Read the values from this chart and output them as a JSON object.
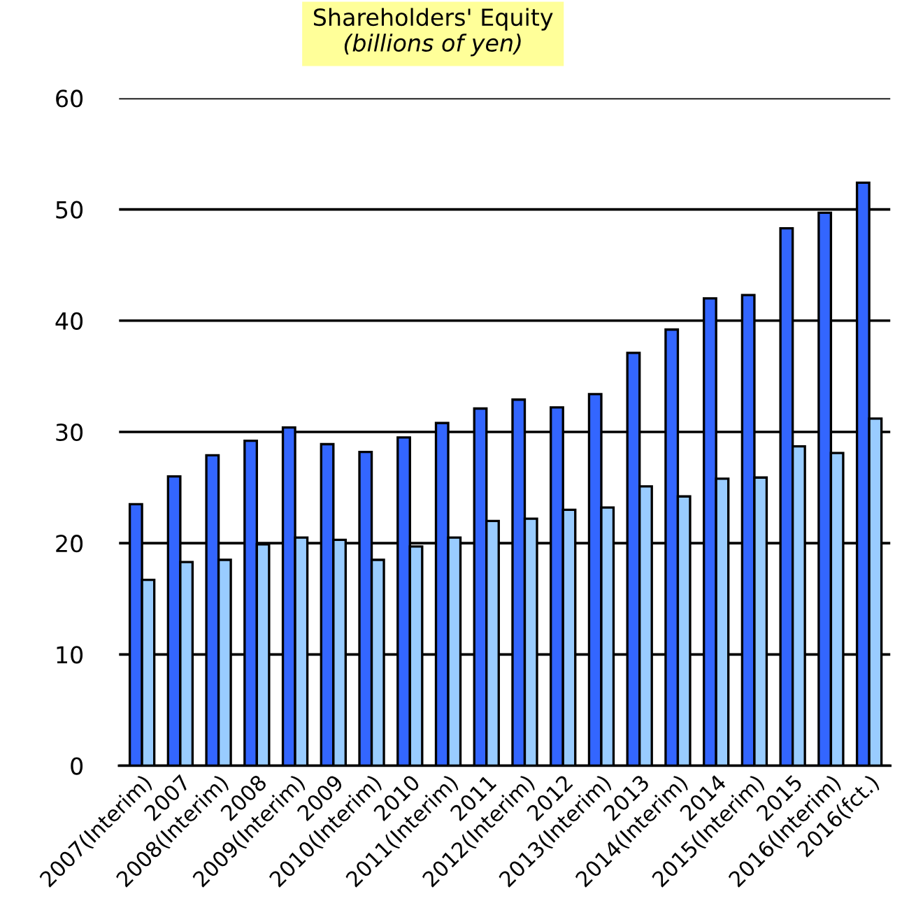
{
  "chart_data": {
    "type": "bar",
    "title": "Shareholders' Equity",
    "subtitle": "(billions of yen)",
    "categories": [
      "2007(Interim)",
      "2007",
      "2008(Interim)",
      "2008",
      "2009(Interim)",
      "2009",
      "2010(Interim)",
      "2010",
      "2011(Interim)",
      "2011",
      "2012(Interim)",
      "2012",
      "2013(Interim)",
      "2013",
      "2014(Interim)",
      "2014",
      "2015(Interim)",
      "2015",
      "2016(Interim)",
      "2016(fct.)"
    ],
    "series": [
      {
        "color": "#3366ff",
        "values": [
          23.5,
          26,
          27.9,
          29.2,
          30.4,
          28.9,
          28.2,
          29.5,
          30.8,
          32.1,
          32.9,
          32.2,
          33.4,
          37.1,
          39.2,
          42,
          42.3,
          48.3,
          49.7,
          52.4
        ]
      },
      {
        "color": "#99ccff",
        "values": [
          16.7,
          18.3,
          18.5,
          19.9,
          20.5,
          20.3,
          18.5,
          19.7,
          20.5,
          22,
          22.2,
          23,
          23.2,
          25.1,
          24.2,
          25.8,
          25.9,
          28.7,
          28.1,
          31.2
        ]
      }
    ],
    "ylim": [
      0,
      60
    ],
    "yticks": [
      0,
      10,
      20,
      30,
      40,
      50,
      60
    ],
    "grid": "y"
  }
}
